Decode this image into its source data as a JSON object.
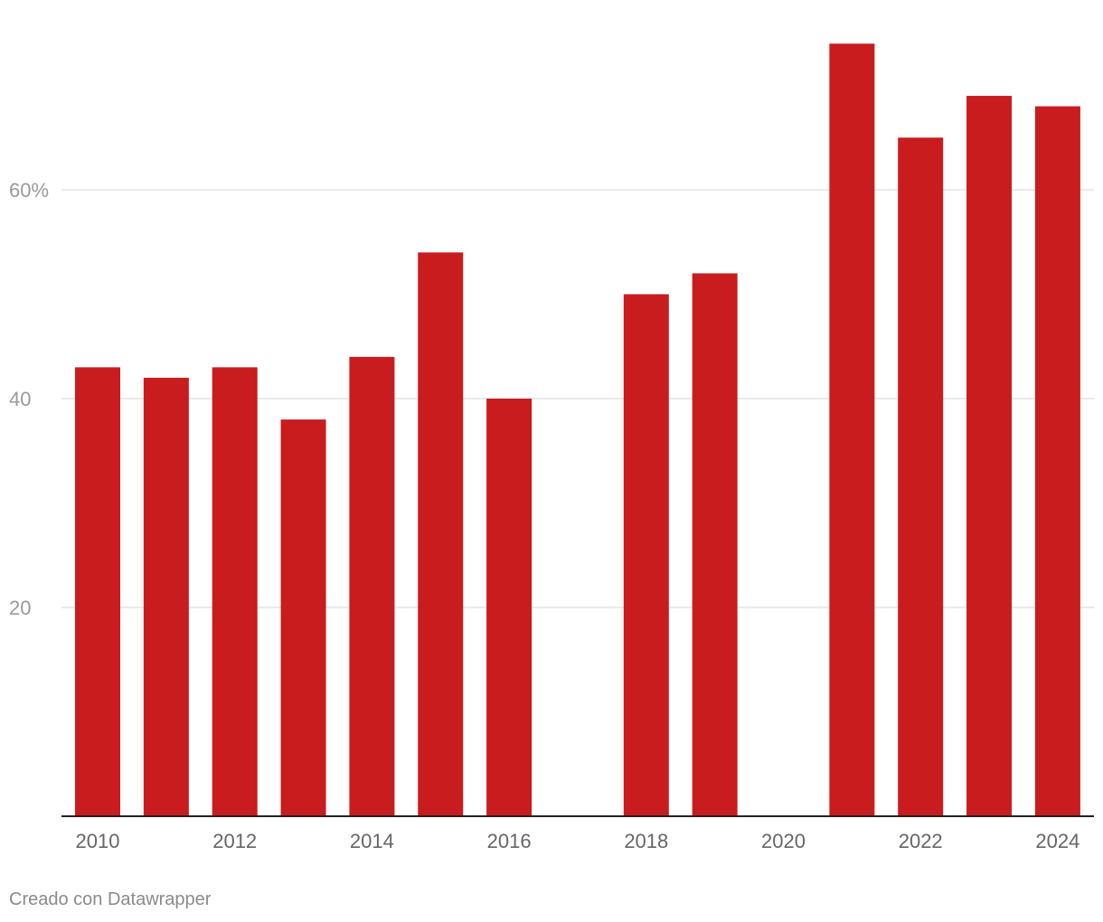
{
  "chart_data": {
    "type": "bar",
    "title": "",
    "xlabel": "",
    "ylabel": "",
    "ylim": [
      0,
      78
    ],
    "y_ticks": [
      {
        "value": 20,
        "label": "20"
      },
      {
        "value": 40,
        "label": "40"
      },
      {
        "value": 60,
        "label": "60%"
      }
    ],
    "categories": [
      "2010",
      "2011",
      "2012",
      "2013",
      "2014",
      "2015",
      "2016",
      "2017",
      "2018",
      "2019",
      "2020",
      "2021",
      "2022",
      "2023",
      "2024"
    ],
    "values": [
      43,
      42,
      43,
      38,
      44,
      54,
      40,
      null,
      50,
      52,
      null,
      74,
      65,
      69,
      68
    ],
    "x_tick_labels": [
      "2010",
      "2012",
      "2014",
      "2016",
      "2018",
      "2020",
      "2022",
      "2024"
    ],
    "bar_color": "#c81c1f",
    "grid": true,
    "gridline_color": "#e3e3e3",
    "baseline_color": "#222222"
  },
  "footer": {
    "credit": "Creado con Datawrapper"
  }
}
